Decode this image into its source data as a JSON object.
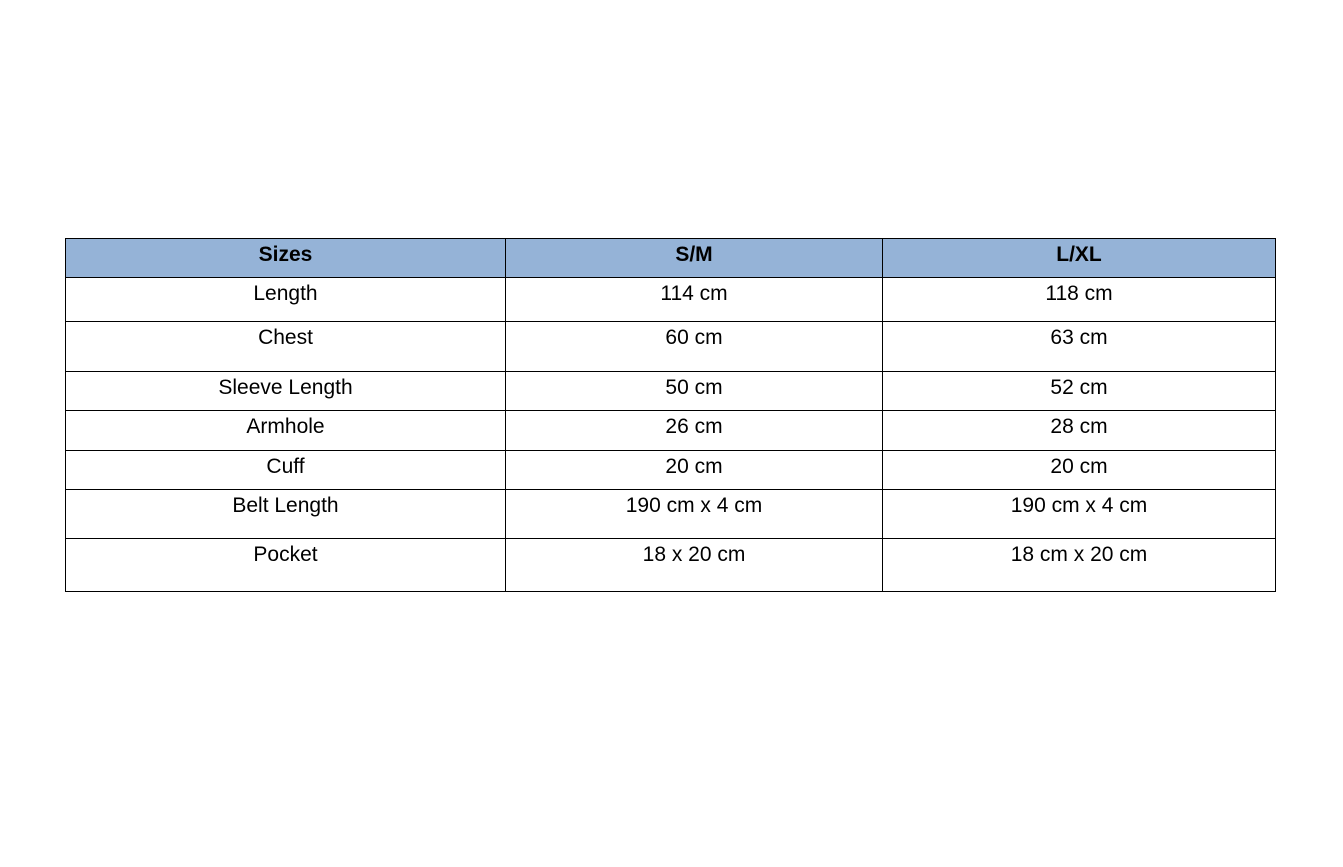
{
  "colors": {
    "header_bg": "#95b3d7"
  },
  "table": {
    "headers": [
      "Sizes",
      "S/M",
      "L/XL"
    ],
    "rows": [
      [
        "Length",
        "114 cm",
        "118 cm"
      ],
      [
        "Chest",
        "60 cm",
        "63 cm"
      ],
      [
        "Sleeve Length",
        "50 cm",
        "52 cm"
      ],
      [
        "Armhole",
        "26 cm",
        "28 cm"
      ],
      [
        "Cuff",
        "20 cm",
        "20 cm"
      ],
      [
        "Belt Length",
        "190 cm x 4 cm",
        "190 cm x 4 cm"
      ],
      [
        "Pocket",
        "18 x 20 cm",
        "18 cm x 20 cm"
      ]
    ]
  }
}
